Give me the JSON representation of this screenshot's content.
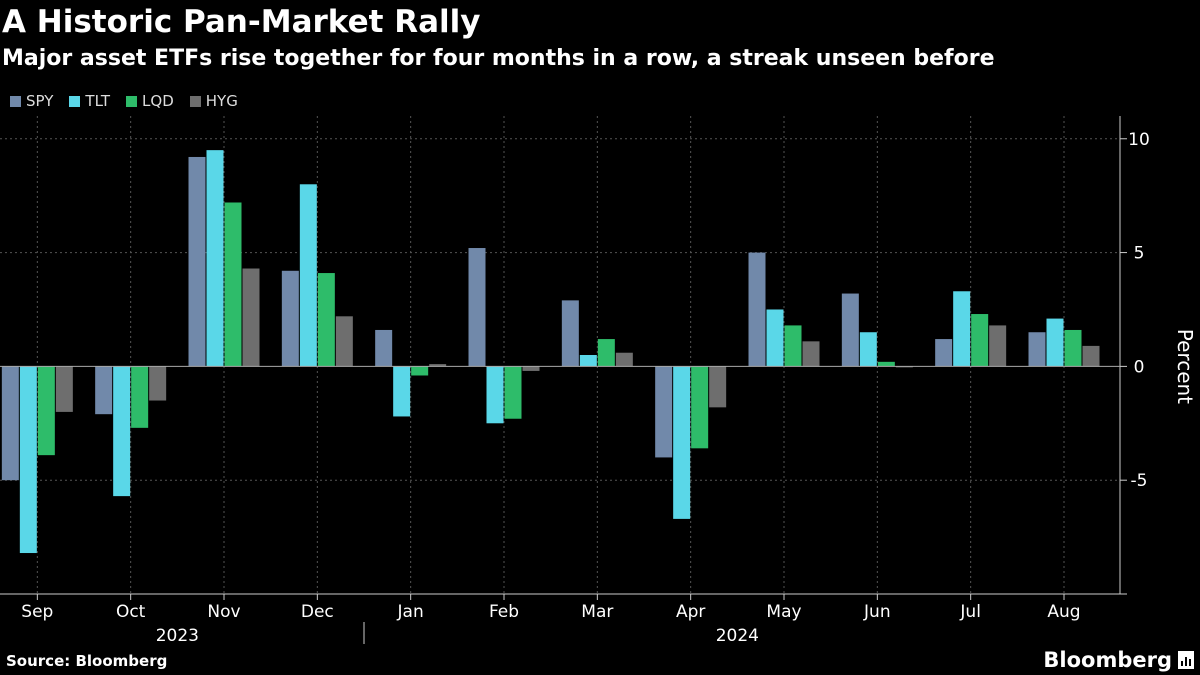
{
  "chart_data": {
    "type": "bar",
    "title": "A Historic Pan-Market Rally",
    "subtitle": "Major asset ETFs rise together for four months in a row, a streak unseen before",
    "categories": [
      "Sep",
      "Oct",
      "Nov",
      "Dec",
      "Jan",
      "Feb",
      "Mar",
      "Apr",
      "May",
      "Jun",
      "Jul",
      "Aug"
    ],
    "year_labels": [
      {
        "label": "2023",
        "from_index": 0,
        "to_index": 3
      },
      {
        "label": "2024",
        "from_index": 4,
        "to_index": 11
      }
    ],
    "series": [
      {
        "name": "SPY",
        "color": "#7189aa",
        "values": [
          -5.0,
          -2.1,
          9.2,
          4.2,
          1.6,
          5.2,
          2.9,
          -4.0,
          5.0,
          3.2,
          1.2,
          1.5
        ]
      },
      {
        "name": "TLT",
        "color": "#5ad7e8",
        "values": [
          -8.2,
          -5.7,
          9.5,
          8.0,
          -2.2,
          -2.5,
          0.5,
          -6.7,
          2.5,
          1.5,
          3.3,
          2.1
        ]
      },
      {
        "name": "LQD",
        "color": "#2ebc6a",
        "values": [
          -3.9,
          -2.7,
          7.2,
          4.1,
          -0.4,
          -2.3,
          1.2,
          -3.6,
          1.8,
          0.2,
          2.3,
          1.6
        ]
      },
      {
        "name": "HYG",
        "color": "#6e6e6e",
        "values": [
          -2.0,
          -1.5,
          4.3,
          2.2,
          0.1,
          -0.2,
          0.6,
          -1.8,
          1.1,
          0.0,
          1.8,
          0.9
        ]
      }
    ],
    "ylabel": "Percent",
    "ylim": [
      -10,
      11
    ],
    "yticks": [
      10,
      5,
      0,
      -5
    ],
    "grid": true
  },
  "source": "Source: Bloomberg",
  "brand": "Bloomberg"
}
